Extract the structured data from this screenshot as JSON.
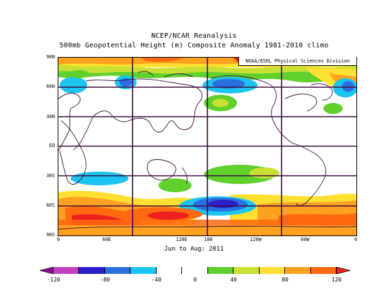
{
  "title": "NCEP/NCAR Reanalysis",
  "subtitle": "500mb Geopotential Height (m) Composite Anomaly 1981-2010 climo",
  "credit": "NOAA/ESRL Physical Sciences Division",
  "date_range": "Jun to Aug: 2011",
  "lat_labels": [
    "90N",
    "60N",
    "30N",
    "EQ",
    "30S",
    "60S",
    "90S"
  ],
  "lon_labels": [
    "0",
    "60E",
    "120E",
    "180",
    "120W",
    "60W",
    "0"
  ],
  "colorbar": {
    "ticks": [
      "-120",
      "-80",
      "-40",
      "0",
      "40",
      "80",
      "120"
    ],
    "colors": [
      "#8c0f8c",
      "#c040c0",
      "#2a1fc8",
      "#2a6fe0",
      "#1cc4f0",
      "#ffffff",
      "#ffffff",
      "#5fd02c",
      "#c8e034",
      "#ffe030",
      "#ffa020",
      "#ff6a10",
      "#ee2020"
    ]
  },
  "legend_tick_values": [
    -120,
    -80,
    -40,
    0,
    40,
    80,
    120
  ]
}
